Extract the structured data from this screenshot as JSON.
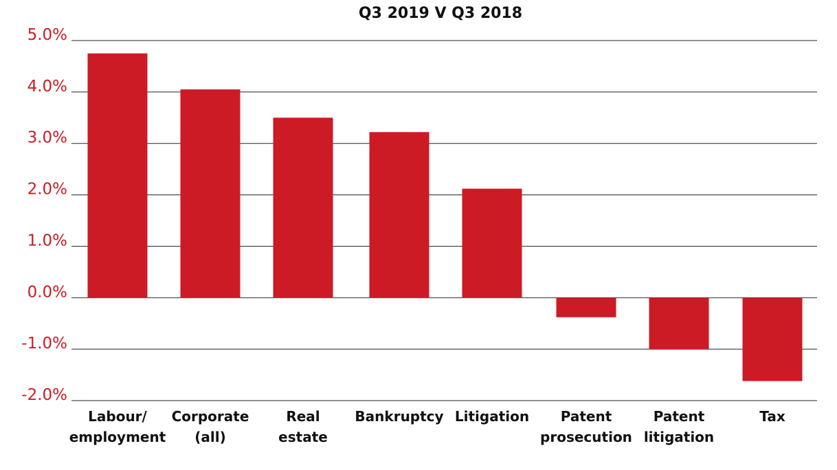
{
  "chart_data": {
    "type": "bar",
    "title": "Q3 2019 V Q3 2018",
    "xlabel": "",
    "ylabel": "",
    "categories": [
      [
        "Labour/",
        "employment"
      ],
      [
        "Corporate",
        "(all)"
      ],
      [
        "Real",
        "estate"
      ],
      [
        "Bankruptcy"
      ],
      [
        "Litigation"
      ],
      [
        "Patent",
        "prosecution"
      ],
      [
        "Patent",
        "litigation"
      ],
      [
        "Tax"
      ]
    ],
    "values": [
      4.75,
      4.05,
      3.5,
      3.22,
      2.12,
      -0.38,
      -1.0,
      -1.62
    ],
    "ylim": [
      -2.0,
      5.0
    ],
    "yticks": [
      5.0,
      4.0,
      3.0,
      2.0,
      1.0,
      0.0,
      -1.0,
      -2.0
    ],
    "ytick_labels": [
      "5.0%",
      "4.0%",
      "3.0%",
      "2.0%",
      "1.0%",
      "0.0%",
      "-1.0%",
      "-2.0%"
    ],
    "grid": true,
    "legend": "none",
    "bar_color": "#cc1b24",
    "tick_label_color": "#cc1b24"
  }
}
